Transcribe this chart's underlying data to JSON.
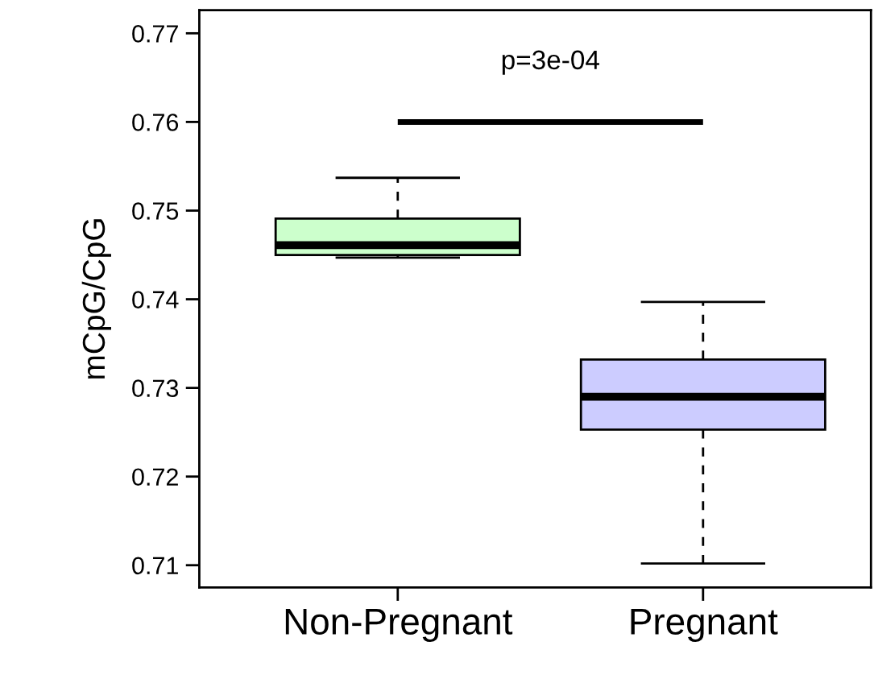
{
  "chart_data": {
    "type": "box",
    "ylabel": "mCpG/CpG",
    "categories": [
      "Non-Pregnant",
      "Pregnant"
    ],
    "boxes": [
      {
        "low": 0.7447,
        "q1": 0.745,
        "median": 0.7461,
        "q3": 0.7491,
        "high": 0.7537
      },
      {
        "low": 0.7102,
        "q1": 0.7253,
        "median": 0.729,
        "q3": 0.7332,
        "high": 0.7397
      }
    ],
    "colors": [
      "#ccffcc",
      "#ccccff"
    ],
    "ylim": [
      0.7075,
      0.7726
    ],
    "yticks": [
      0.71,
      0.72,
      0.73,
      0.74,
      0.75,
      0.76,
      0.77
    ],
    "ref_lines": [
      {
        "axis": "y",
        "value": 0.76,
        "color": "#000000"
      }
    ],
    "annotations": [
      "p=3e-04"
    ],
    "grid": false,
    "legend": false
  }
}
